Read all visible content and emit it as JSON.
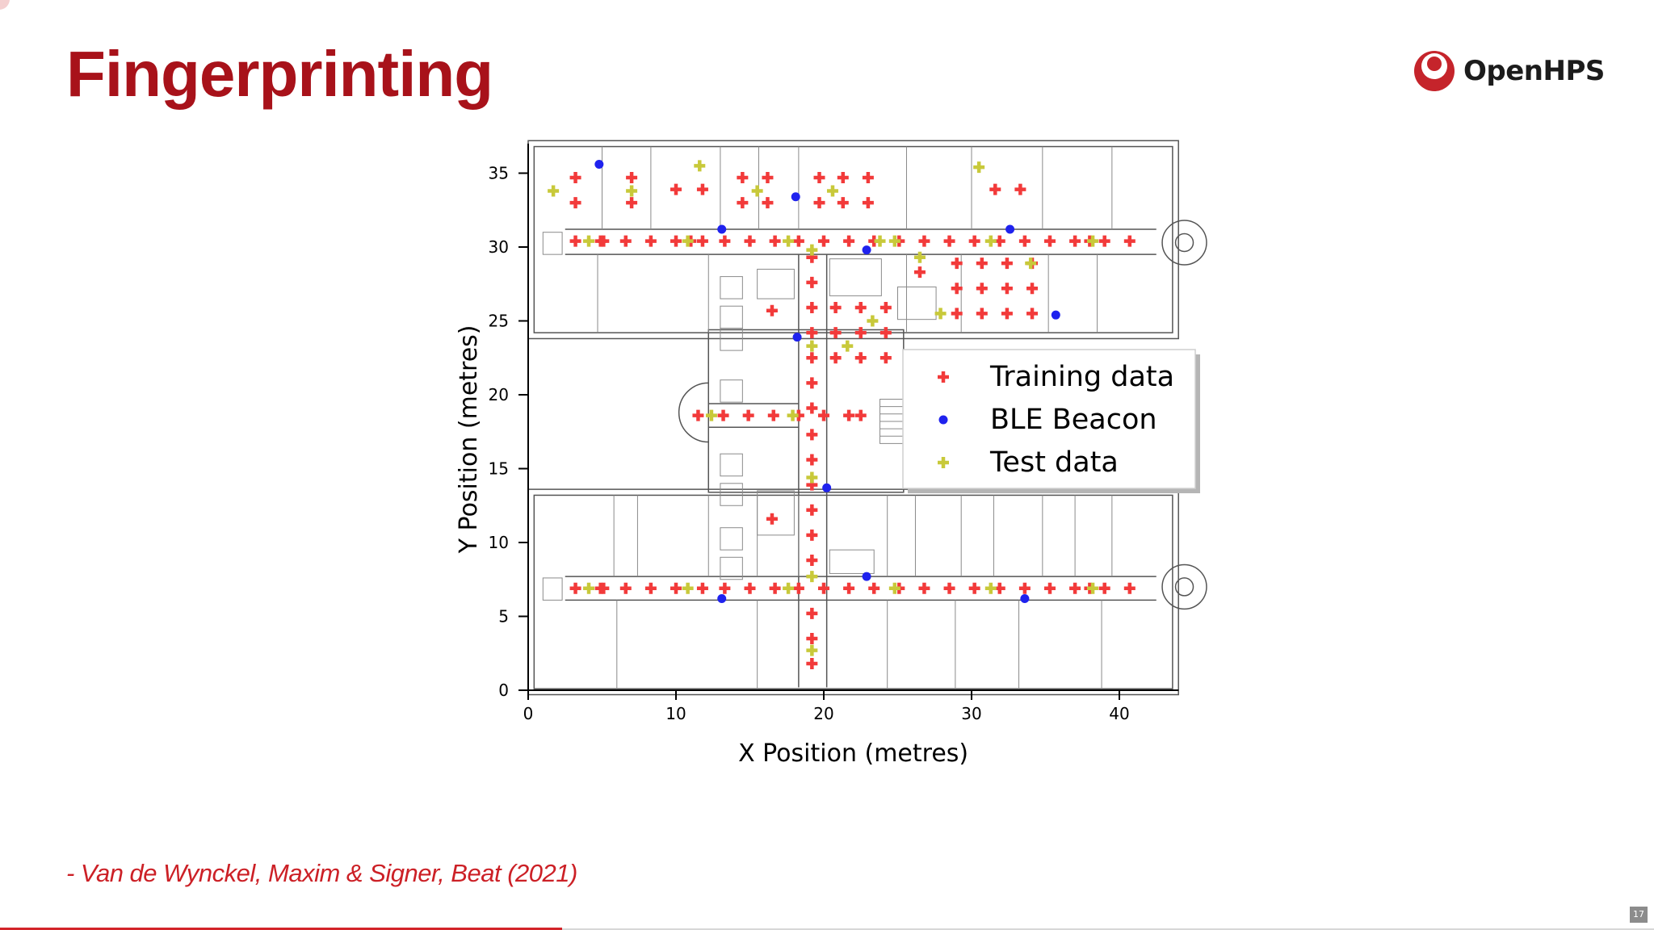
{
  "slide": {
    "title": "Fingerprinting",
    "logo_text": "OpenHPS",
    "citation": "- Van de Wynckel, Maxim & Signer, Beat (2021)",
    "page_number": "17",
    "progress": 0.34,
    "colors": {
      "title": "#a8121a",
      "accent": "#d3242a",
      "citation": "#cc2026"
    }
  },
  "chart_data": {
    "type": "scatter",
    "title": "",
    "xlabel": "X Position (metres)",
    "ylabel": "Y Position (metres)",
    "xlim": [
      0,
      44
    ],
    "ylim": [
      0,
      37
    ],
    "xticks": [
      0,
      10,
      20,
      30,
      40
    ],
    "yticks": [
      0,
      5,
      10,
      15,
      20,
      25,
      30,
      35
    ],
    "grid": false,
    "legend_position": "center-right",
    "background": "building floor plan",
    "series": [
      {
        "name": "Training data",
        "marker": "plus",
        "color": "#f23a3a",
        "points": [
          [
            3.2,
            34.7
          ],
          [
            7.0,
            34.7
          ],
          [
            14.5,
            34.7
          ],
          [
            16.2,
            34.7
          ],
          [
            19.7,
            34.7
          ],
          [
            21.3,
            34.7
          ],
          [
            23.0,
            34.7
          ],
          [
            3.2,
            33.0
          ],
          [
            7.0,
            33.0
          ],
          [
            14.5,
            33.0
          ],
          [
            16.2,
            33.0
          ],
          [
            19.7,
            33.0
          ],
          [
            21.3,
            33.0
          ],
          [
            23.0,
            33.0
          ],
          [
            10.0,
            33.9
          ],
          [
            11.8,
            33.9
          ],
          [
            31.6,
            33.9
          ],
          [
            33.3,
            33.9
          ],
          [
            3.2,
            30.4
          ],
          [
            4.9,
            30.4
          ],
          [
            5.1,
            30.4
          ],
          [
            6.6,
            30.4
          ],
          [
            8.3,
            30.4
          ],
          [
            10.0,
            30.4
          ],
          [
            11.0,
            30.4
          ],
          [
            11.8,
            30.4
          ],
          [
            13.3,
            30.4
          ],
          [
            15.0,
            30.4
          ],
          [
            16.7,
            30.4
          ],
          [
            18.3,
            30.4
          ],
          [
            20.0,
            30.4
          ],
          [
            21.7,
            30.4
          ],
          [
            23.4,
            30.4
          ],
          [
            25.1,
            30.4
          ],
          [
            26.8,
            30.4
          ],
          [
            28.5,
            30.4
          ],
          [
            30.2,
            30.4
          ],
          [
            31.9,
            30.4
          ],
          [
            33.6,
            30.4
          ],
          [
            35.3,
            30.4
          ],
          [
            37.0,
            30.4
          ],
          [
            38.0,
            30.4
          ],
          [
            39.0,
            30.4
          ],
          [
            40.7,
            30.4
          ],
          [
            26.5,
            28.3
          ],
          [
            19.2,
            29.3
          ],
          [
            19.2,
            27.6
          ],
          [
            19.2,
            25.9
          ],
          [
            19.2,
            24.2
          ],
          [
            19.2,
            22.5
          ],
          [
            19.2,
            20.8
          ],
          [
            19.2,
            19.1
          ],
          [
            19.2,
            17.3
          ],
          [
            19.2,
            15.6
          ],
          [
            19.2,
            13.9
          ],
          [
            19.2,
            12.2
          ],
          [
            19.2,
            10.5
          ],
          [
            19.2,
            8.8
          ],
          [
            29.0,
            28.9
          ],
          [
            30.7,
            28.9
          ],
          [
            32.4,
            28.9
          ],
          [
            34.1,
            28.9
          ],
          [
            29.0,
            27.2
          ],
          [
            30.7,
            27.2
          ],
          [
            32.4,
            27.2
          ],
          [
            34.1,
            27.2
          ],
          [
            29.0,
            25.5
          ],
          [
            30.7,
            25.5
          ],
          [
            32.4,
            25.5
          ],
          [
            34.1,
            25.5
          ],
          [
            16.5,
            25.7
          ],
          [
            20.8,
            25.9
          ],
          [
            22.5,
            25.9
          ],
          [
            24.2,
            25.9
          ],
          [
            20.8,
            24.2
          ],
          [
            22.5,
            24.2
          ],
          [
            24.2,
            24.2
          ],
          [
            20.8,
            22.5
          ],
          [
            22.5,
            22.5
          ],
          [
            24.2,
            22.5
          ],
          [
            11.5,
            18.6
          ],
          [
            13.2,
            18.6
          ],
          [
            14.9,
            18.6
          ],
          [
            16.6,
            18.6
          ],
          [
            18.3,
            18.6
          ],
          [
            20.0,
            18.6
          ],
          [
            21.7,
            18.6
          ],
          [
            22.5,
            18.6
          ],
          [
            16.5,
            11.6
          ],
          [
            3.2,
            6.9
          ],
          [
            4.9,
            6.9
          ],
          [
            5.1,
            6.9
          ],
          [
            6.6,
            6.9
          ],
          [
            8.3,
            6.9
          ],
          [
            10.0,
            6.9
          ],
          [
            11.8,
            6.9
          ],
          [
            13.3,
            6.9
          ],
          [
            15.0,
            6.9
          ],
          [
            16.7,
            6.9
          ],
          [
            18.3,
            6.9
          ],
          [
            20.0,
            6.9
          ],
          [
            21.7,
            6.9
          ],
          [
            23.4,
            6.9
          ],
          [
            25.1,
            6.9
          ],
          [
            26.8,
            6.9
          ],
          [
            28.5,
            6.9
          ],
          [
            30.2,
            6.9
          ],
          [
            31.9,
            6.9
          ],
          [
            33.6,
            6.9
          ],
          [
            35.3,
            6.9
          ],
          [
            37.0,
            6.9
          ],
          [
            38.0,
            6.9
          ],
          [
            39.0,
            6.9
          ],
          [
            40.7,
            6.9
          ],
          [
            19.2,
            5.2
          ],
          [
            19.2,
            3.5
          ],
          [
            19.2,
            1.8
          ]
        ]
      },
      {
        "name": "BLE Beacon",
        "marker": "dot",
        "color": "#1f22ee",
        "points": [
          [
            4.8,
            35.6
          ],
          [
            18.1,
            33.4
          ],
          [
            13.1,
            31.2
          ],
          [
            32.6,
            31.2
          ],
          [
            22.9,
            29.8
          ],
          [
            35.7,
            25.4
          ],
          [
            18.2,
            23.9
          ],
          [
            20.2,
            13.7
          ],
          [
            22.9,
            7.7
          ],
          [
            13.1,
            6.2
          ],
          [
            33.6,
            6.2
          ]
        ]
      },
      {
        "name": "Test data",
        "marker": "plus",
        "color": "#c8c93a",
        "points": [
          [
            1.7,
            33.8
          ],
          [
            11.6,
            35.5
          ],
          [
            7.0,
            33.8
          ],
          [
            15.5,
            33.8
          ],
          [
            20.6,
            33.8
          ],
          [
            30.5,
            35.4
          ],
          [
            4.1,
            30.4
          ],
          [
            10.8,
            30.4
          ],
          [
            17.6,
            30.4
          ],
          [
            23.8,
            30.4
          ],
          [
            24.8,
            30.4
          ],
          [
            31.3,
            30.4
          ],
          [
            38.2,
            30.4
          ],
          [
            26.5,
            29.3
          ],
          [
            19.2,
            29.8
          ],
          [
            34.0,
            28.9
          ],
          [
            23.3,
            25.0
          ],
          [
            21.6,
            23.3
          ],
          [
            19.2,
            23.3
          ],
          [
            27.9,
            25.5
          ],
          [
            12.4,
            18.6
          ],
          [
            17.9,
            18.6
          ],
          [
            19.2,
            14.4
          ],
          [
            19.2,
            7.7
          ],
          [
            4.1,
            6.9
          ],
          [
            10.8,
            6.9
          ],
          [
            17.6,
            6.9
          ],
          [
            24.8,
            6.9
          ],
          [
            31.3,
            6.9
          ],
          [
            38.2,
            6.9
          ],
          [
            19.2,
            2.7
          ]
        ]
      }
    ]
  }
}
